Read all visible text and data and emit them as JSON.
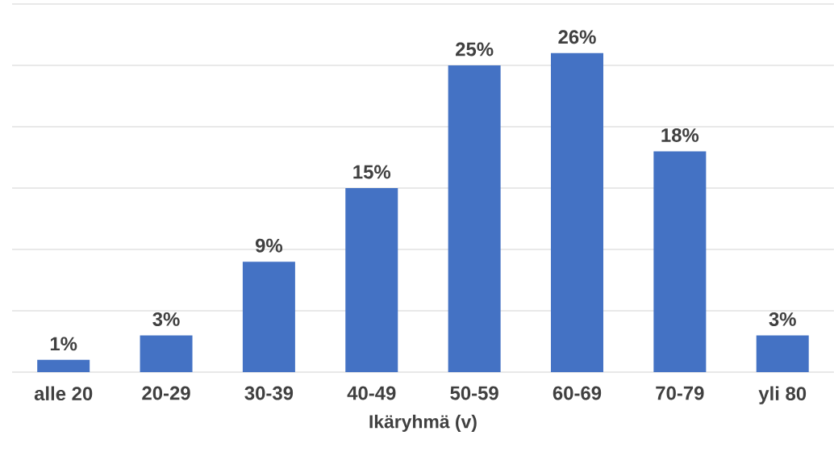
{
  "chart_data": {
    "type": "bar",
    "xlabel": "Ikäryhmä (v)",
    "categories": [
      "alle 20",
      "20-29",
      "30-39",
      "40-49",
      "50-59",
      "60-69",
      "70-79",
      "yli 80"
    ],
    "values": [
      1,
      3,
      9,
      15,
      25,
      26,
      18,
      3
    ],
    "value_labels": [
      "1%",
      "3%",
      "9%",
      "15%",
      "25%",
      "26%",
      "18%",
      "3%"
    ],
    "color": "#4472c4",
    "ylim": [
      0,
      30
    ],
    "yticks": [
      0,
      5,
      10,
      15,
      20,
      25,
      30
    ],
    "grid": "y",
    "tick_labels": "x"
  }
}
